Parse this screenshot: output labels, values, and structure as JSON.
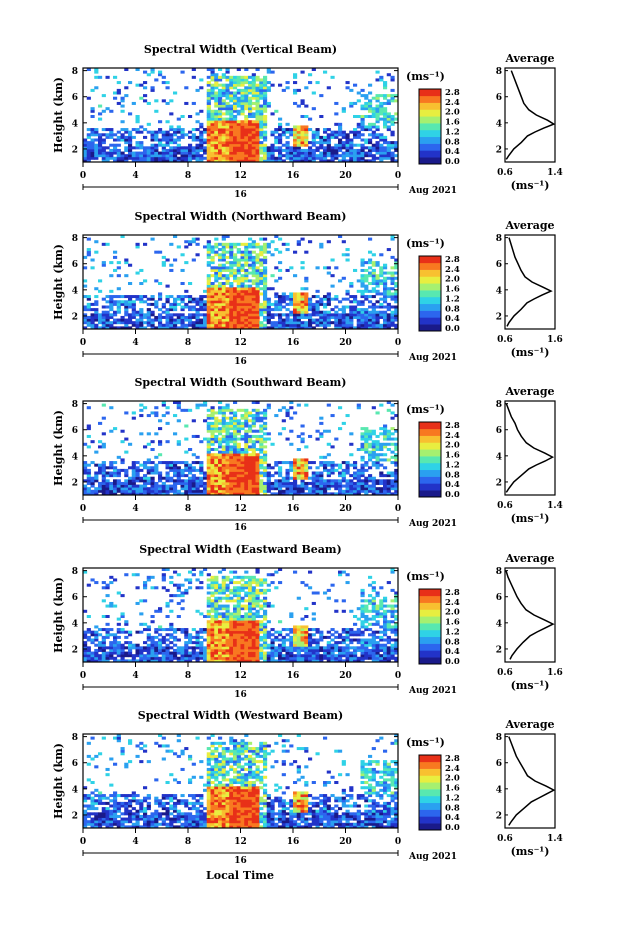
{
  "figure": {
    "xlabel": "Local Time",
    "ylabel": "Height (km)",
    "unit_label": "(ms⁻¹)",
    "avg_title": "Average",
    "avg_unit": "(ms⁻¹)",
    "date_label": "Aug 2021",
    "day_label": "16",
    "x_ticks": [
      "0",
      "4",
      "8",
      "12",
      "16",
      "20",
      "0"
    ],
    "y_ticks": [
      "2",
      "4",
      "6",
      "8"
    ],
    "colorbar_ticks": [
      "0.0",
      "0.4",
      "0.8",
      "1.2",
      "1.6",
      "2.0",
      "2.4",
      "2.8"
    ]
  },
  "colormap": [
    "#1a1a8a",
    "#2233c8",
    "#2c66ee",
    "#2aa0f0",
    "#2fd2e6",
    "#58e8b0",
    "#a6f070",
    "#e8ee40",
    "#f8c030",
    "#f87820",
    "#e83018"
  ],
  "chart_data": [
    {
      "type": "heatmap",
      "title": "Spectral Width (Vertical Beam)",
      "xlabel": "Local Time",
      "ylabel": "Height (km)",
      "x_range": [
        0,
        24
      ],
      "y_range": [
        1.0,
        8.2
      ],
      "value_range": [
        0.0,
        2.8
      ],
      "avg_profile": {
        "xlim": [
          0.6,
          1.4
        ],
        "ticks": [
          "0.6",
          "1.4"
        ],
        "heights": [
          1.2,
          1.5,
          2.0,
          2.5,
          3.0,
          3.3,
          3.6,
          3.9,
          4.2,
          4.6,
          5.0,
          5.5,
          6.0,
          6.5,
          7.0,
          7.5,
          8.0
        ],
        "values": [
          0.62,
          0.66,
          0.74,
          0.86,
          0.96,
          1.08,
          1.22,
          1.38,
          1.28,
          1.1,
          0.98,
          0.9,
          0.86,
          0.82,
          0.78,
          0.74,
          0.7
        ]
      }
    },
    {
      "type": "heatmap",
      "title": "Spectral Width (Northward Beam)",
      "xlabel": "Local Time",
      "ylabel": "Height (km)",
      "x_range": [
        0,
        24
      ],
      "y_range": [
        1.0,
        8.2
      ],
      "value_range": [
        0.0,
        2.8
      ],
      "avg_profile": {
        "xlim": [
          0.6,
          1.6
        ],
        "ticks": [
          "0.6",
          "1.6"
        ],
        "heights": [
          1.2,
          1.5,
          2.0,
          2.5,
          3.0,
          3.3,
          3.6,
          3.9,
          4.2,
          4.6,
          5.0,
          5.5,
          6.0,
          6.5,
          7.0,
          7.5,
          8.0
        ],
        "values": [
          0.64,
          0.68,
          0.78,
          0.92,
          1.04,
          1.18,
          1.34,
          1.52,
          1.36,
          1.14,
          1.0,
          0.92,
          0.86,
          0.8,
          0.76,
          0.72,
          0.68
        ]
      }
    },
    {
      "type": "heatmap",
      "title": "Spectral Width (Southward Beam)",
      "xlabel": "Local Time",
      "ylabel": "Height (km)",
      "x_range": [
        0,
        24
      ],
      "y_range": [
        1.0,
        8.2
      ],
      "value_range": [
        0.0,
        2.8
      ],
      "avg_profile": {
        "xlim": [
          0.6,
          1.4
        ],
        "ticks": [
          "0.6",
          "1.4"
        ],
        "heights": [
          1.2,
          1.5,
          2.0,
          2.5,
          3.0,
          3.3,
          3.6,
          3.9,
          4.2,
          4.6,
          5.0,
          5.5,
          6.0,
          6.5,
          7.0,
          7.5,
          8.0
        ],
        "values": [
          0.62,
          0.66,
          0.74,
          0.86,
          0.98,
          1.1,
          1.24,
          1.36,
          1.24,
          1.06,
          0.94,
          0.86,
          0.8,
          0.76,
          0.7,
          0.66,
          0.62
        ]
      }
    },
    {
      "type": "heatmap",
      "title": "Spectral Width (Eastward Beam)",
      "xlabel": "Local Time",
      "ylabel": "Height (km)",
      "x_range": [
        0,
        24
      ],
      "y_range": [
        1.0,
        8.2
      ],
      "value_range": [
        0.0,
        2.8
      ],
      "avg_profile": {
        "xlim": [
          0.6,
          1.6
        ],
        "ticks": [
          "0.6",
          "1.6"
        ],
        "heights": [
          1.2,
          1.5,
          2.0,
          2.5,
          3.0,
          3.3,
          3.6,
          3.9,
          4.2,
          4.6,
          5.0,
          5.5,
          6.0,
          6.5,
          7.0,
          7.5,
          8.0
        ],
        "values": [
          0.7,
          0.74,
          0.84,
          0.96,
          1.1,
          1.24,
          1.4,
          1.56,
          1.4,
          1.18,
          1.02,
          0.92,
          0.84,
          0.78,
          0.72,
          0.66,
          0.62
        ]
      }
    },
    {
      "type": "heatmap",
      "title": "Spectral Width (Westward Beam)",
      "xlabel": "Local Time",
      "ylabel": "Height (km)",
      "x_range": [
        0,
        24
      ],
      "y_range": [
        1.0,
        8.2
      ],
      "value_range": [
        0.0,
        2.8
      ],
      "avg_profile": {
        "xlim": [
          0.6,
          1.4
        ],
        "ticks": [
          "0.6",
          "1.4"
        ],
        "heights": [
          1.2,
          1.5,
          2.0,
          2.5,
          3.0,
          3.3,
          3.6,
          3.9,
          4.2,
          4.6,
          5.0,
          5.5,
          6.0,
          6.5,
          7.0,
          7.5,
          8.0
        ],
        "values": [
          0.66,
          0.7,
          0.78,
          0.9,
          1.02,
          1.14,
          1.26,
          1.38,
          1.26,
          1.08,
          0.96,
          0.9,
          0.84,
          0.78,
          0.74,
          0.7,
          0.66
        ]
      }
    }
  ]
}
